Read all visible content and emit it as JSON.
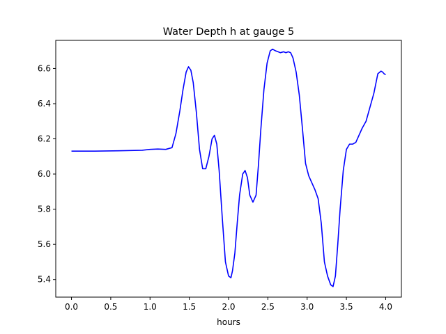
{
  "chart_data": {
    "type": "line",
    "title": "Water Depth h at gauge 5",
    "xlabel": "hours",
    "ylabel": "",
    "xlim": [
      -0.2,
      4.2
    ],
    "ylim": [
      5.3,
      6.76
    ],
    "xticks": [
      0.0,
      0.5,
      1.0,
      1.5,
      2.0,
      2.5,
      3.0,
      3.5,
      4.0
    ],
    "xtick_labels": [
      "0.0",
      "0.5",
      "1.0",
      "1.5",
      "2.0",
      "2.5",
      "3.0",
      "3.5",
      "4.0"
    ],
    "yticks": [
      5.4,
      5.6,
      5.8,
      6.0,
      6.2,
      6.4,
      6.6
    ],
    "ytick_labels": [
      "5.4",
      "5.6",
      "5.8",
      "6.0",
      "6.2",
      "6.4",
      "6.6"
    ],
    "grid": false,
    "legend": "none",
    "series": [
      {
        "color": "#0000ff",
        "x": [
          0.0,
          0.3,
          0.6,
          0.9,
          1.0,
          1.1,
          1.2,
          1.28,
          1.33,
          1.38,
          1.42,
          1.46,
          1.49,
          1.52,
          1.55,
          1.59,
          1.63,
          1.67,
          1.71,
          1.75,
          1.79,
          1.82,
          1.85,
          1.88,
          1.92,
          1.96,
          2.0,
          2.03,
          2.05,
          2.08,
          2.11,
          2.14,
          2.18,
          2.21,
          2.24,
          2.27,
          2.31,
          2.35,
          2.38,
          2.41,
          2.45,
          2.49,
          2.53,
          2.56,
          2.58,
          2.6,
          2.63,
          2.66,
          2.7,
          2.73,
          2.76,
          2.79,
          2.82,
          2.86,
          2.9,
          2.94,
          2.98,
          3.02,
          3.06,
          3.1,
          3.14,
          3.18,
          3.22,
          3.26,
          3.3,
          3.33,
          3.36,
          3.39,
          3.42,
          3.46,
          3.5,
          3.54,
          3.58,
          3.62,
          3.66,
          3.7,
          3.75,
          3.8,
          3.85,
          3.9,
          3.94,
          3.96,
          3.98,
          4.0
        ],
        "values": [
          6.13,
          6.13,
          6.132,
          6.135,
          6.14,
          6.142,
          6.14,
          6.15,
          6.23,
          6.36,
          6.48,
          6.58,
          6.61,
          6.59,
          6.52,
          6.35,
          6.14,
          6.03,
          6.03,
          6.1,
          6.2,
          6.22,
          6.17,
          6.02,
          5.75,
          5.5,
          5.42,
          5.41,
          5.45,
          5.55,
          5.72,
          5.88,
          6.0,
          6.02,
          5.98,
          5.88,
          5.84,
          5.88,
          6.05,
          6.25,
          6.48,
          6.63,
          6.7,
          6.71,
          6.705,
          6.7,
          6.695,
          6.69,
          6.695,
          6.69,
          6.695,
          6.69,
          6.66,
          6.58,
          6.45,
          6.26,
          6.06,
          5.99,
          5.95,
          5.91,
          5.86,
          5.72,
          5.5,
          5.42,
          5.37,
          5.36,
          5.42,
          5.6,
          5.8,
          6.02,
          6.14,
          6.17,
          6.17,
          6.18,
          6.22,
          6.26,
          6.3,
          6.38,
          6.46,
          6.57,
          6.585,
          6.58,
          6.57,
          6.565
        ]
      }
    ]
  }
}
